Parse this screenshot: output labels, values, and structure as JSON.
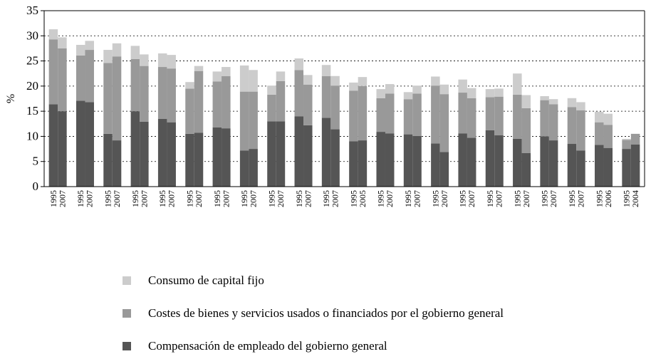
{
  "chart_data": {
    "type": "stacked_bar",
    "y_label": "%",
    "categories": [
      "1995",
      "2007",
      "1995",
      "2007",
      "1995",
      "2007",
      "1995",
      "2007",
      "1995",
      "2007",
      "1995",
      "2007",
      "1995",
      "2007",
      "1995",
      "2007",
      "1995",
      "2007",
      "1995",
      "2007",
      "1995",
      "2007",
      "1995",
      "2005",
      "1995",
      "2007",
      "1995",
      "2007",
      "1995",
      "2007",
      "1995",
      "2007",
      "1995",
      "2007",
      "1995",
      "2007",
      "1995",
      "2007",
      "1995",
      "2007",
      "1995",
      "2006",
      "1995",
      "2004"
    ],
    "series": [
      {
        "name": "Compensación de empleado del gobierno general",
        "color": "#555555",
        "values": [
          16.4,
          15.0,
          17.1,
          16.8,
          10.5,
          9.2,
          15.0,
          12.9,
          13.5,
          12.8,
          10.5,
          10.7,
          11.8,
          11.6,
          7.2,
          7.5,
          13.0,
          13.0,
          14.0,
          12.2,
          13.7,
          11.4,
          9.0,
          9.2,
          10.9,
          10.6,
          10.4,
          10.1,
          8.6,
          6.9,
          10.6,
          9.7,
          11.2,
          10.2,
          9.5,
          6.7,
          10.0,
          9.2,
          8.5,
          7.2,
          8.3,
          7.7,
          7.5,
          8.4
        ]
      },
      {
        "name": "Costes de bienes y servicios usados o financiados por el gobierno general",
        "color": "#999999",
        "values": [
          12.9,
          12.5,
          9.0,
          10.4,
          14.1,
          16.7,
          10.4,
          11.1,
          10.3,
          10.7,
          9.0,
          12.3,
          9.1,
          10.4,
          11.7,
          11.4,
          5.3,
          8.0,
          9.2,
          8.1,
          8.3,
          8.7,
          10.1,
          10.8,
          6.7,
          7.9,
          7.0,
          8.4,
          11.5,
          11.5,
          8.1,
          7.9,
          6.6,
          7.7,
          8.8,
          8.9,
          7.2,
          7.2,
          7.3,
          8.0,
          4.5,
          4.6,
          1.8,
          2.1
        ]
      },
      {
        "name": "Consumo de capital fijo",
        "color": "#cccccc",
        "values": [
          2.0,
          2.2,
          2.1,
          1.8,
          2.6,
          2.6,
          2.6,
          2.3,
          2.7,
          2.7,
          1.3,
          1.0,
          2.0,
          1.8,
          5.2,
          4.3,
          1.8,
          1.9,
          2.3,
          1.9,
          2.2,
          1.9,
          1.6,
          1.8,
          1.8,
          1.9,
          1.4,
          1.6,
          1.8,
          1.9,
          2.6,
          2.0,
          1.6,
          1.6,
          4.2,
          2.6,
          0.8,
          1.0,
          1.8,
          1.6,
          2.1,
          2.2,
          0.2,
          0.0
        ]
      }
    ],
    "ylim": [
      0,
      35
    ],
    "yticks": [
      0,
      5,
      10,
      15,
      20,
      25,
      30,
      35
    ],
    "grid": true,
    "legend": "bottom"
  }
}
